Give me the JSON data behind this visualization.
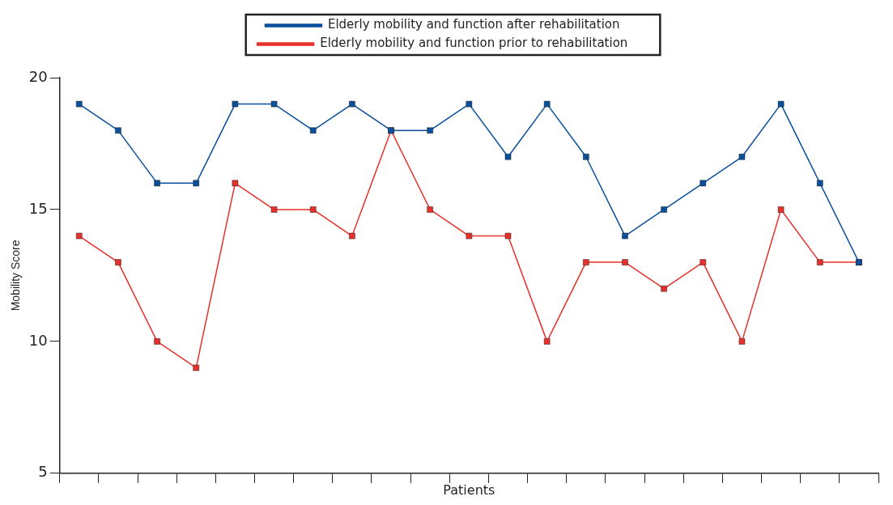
{
  "chart_data": {
    "type": "line",
    "xlabel": "Patients",
    "ylabel": "Mobility Score",
    "categories": [
      null,
      null,
      null,
      null,
      null,
      null,
      null,
      null,
      null,
      null,
      null,
      null,
      null,
      null,
      null,
      null,
      null,
      null,
      null,
      null,
      null
    ],
    "series": [
      {
        "name": "Elderly mobility and function after rehabilitation",
        "color": "#0a4f9c",
        "values": [
          19,
          18,
          16,
          16,
          19,
          19,
          18,
          19,
          18,
          18,
          19,
          17,
          19,
          17,
          14,
          15,
          16,
          17,
          19,
          16,
          13
        ]
      },
      {
        "name": "Elderly mobility and function prior to rehabilitation",
        "color": "#e8302a",
        "values": [
          14,
          13,
          10,
          9,
          16,
          15,
          15,
          14,
          18,
          15,
          14,
          14,
          10,
          13,
          13,
          12,
          13,
          10,
          15,
          13,
          13
        ]
      }
    ],
    "ylim": [
      5,
      20
    ],
    "yticks": [
      5,
      10,
      15,
      20
    ],
    "grid": false,
    "legend": "top",
    "marker": "square",
    "line_style": "solid",
    "tick_labels": "y"
  }
}
